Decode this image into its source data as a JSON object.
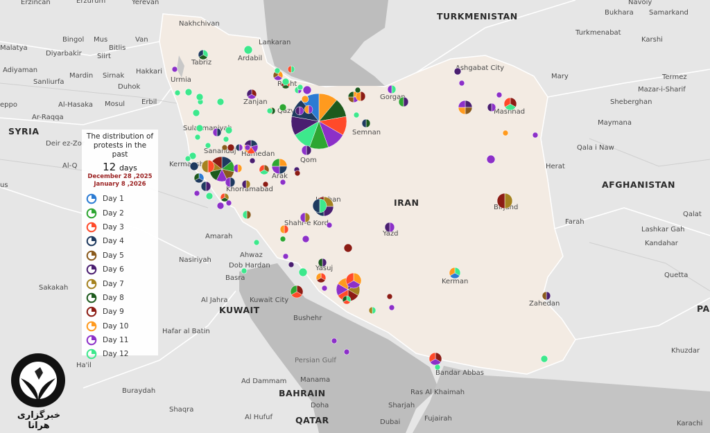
{
  "legend": {
    "title_line1": "The distribution of",
    "title_line2": "protests in the past",
    "count": "12",
    "count_unit": "days",
    "date_start": "December 28 ,2025",
    "date_end": "January  8 ,2026",
    "days": [
      {
        "label": "Day 1",
        "color": "#2b7bd3"
      },
      {
        "label": "Day 2",
        "color": "#2ea632"
      },
      {
        "label": "Day 3",
        "color": "#ff4a2a"
      },
      {
        "label": "Day 4",
        "color": "#1f3a5f"
      },
      {
        "label": "Day 5",
        "color": "#8a5a1c"
      },
      {
        "label": "Day 6",
        "color": "#4a1e70"
      },
      {
        "label": "Day 7",
        "color": "#a58220"
      },
      {
        "label": "Day 8",
        "color": "#1d5a1d"
      },
      {
        "label": "Day 9",
        "color": "#8c1c14"
      },
      {
        "label": "Day 10",
        "color": "#ff9a1e"
      },
      {
        "label": "Day 11",
        "color": "#8c30c8"
      },
      {
        "label": "Day 12",
        "color": "#3de88c"
      }
    ]
  },
  "logo": {
    "ring_text": "HUMAN RIGHTS ACTIVISTS IN IRAN",
    "caption": "خبرگزاری هرانا"
  },
  "map": {
    "countries": [
      "TURKMENISTAN",
      "SYRIA",
      "AFGHANISTAN",
      "IRAN",
      "KUWAIT",
      "BAHRAIN",
      "QATAR",
      "PA"
    ],
    "seas": [
      "Persian Gulf"
    ],
    "places": [
      "Yerevan",
      "Nakhchivan",
      "Erzincan",
      "Erzurum",
      "Bingol",
      "Mus",
      "Bitlis",
      "Van",
      "Siirt",
      "Diyarbakir",
      "Malatya",
      "Adiyaman",
      "Sanliurfa",
      "Mardin",
      "Sirnak",
      "Duhok",
      "Hakkari",
      "Urmia",
      "Tabriz",
      "Ardabil",
      "Lankaran",
      "eppo",
      "Al-Hasaka",
      "Ar-Raqqa",
      "Mosul",
      "Erbil",
      "Deir ez-Zor",
      "Sulaymaniyah",
      "Sanandaj",
      "Kermanshah",
      "Hamedan",
      "Al-Q",
      "us",
      "Khorramabad",
      "Arak",
      "Qom",
      "Rasht",
      "Zanjan",
      "Qazvin",
      "Semnan",
      "Gorgan",
      "Ashgabat City",
      "Turkmenabat",
      "Bukhara",
      "Samarkand",
      "Navoiy",
      "Karshi",
      "Mary",
      "Termez",
      "Mazar-i-Sharif",
      "Sheberghan",
      "Maymana",
      "Mashhad",
      "Qala i Naw",
      "Herat",
      "Farah",
      "Lashkar Gah",
      "Kandahar",
      "Qalat",
      "Birjand",
      "Yazd",
      "Shahr-e Kord",
      "Isfahan",
      "Amarah",
      "Ahwaz",
      "Dob Hardan",
      "Nasiriyah",
      "Basra",
      "Yasuj",
      "Kerman",
      "Zahedan",
      "Quetta",
      "Al Jahra",
      "Kuwait City",
      "Bushehr",
      "Sakakah",
      "Hafar al Batin",
      "Bandar Abbas",
      "Ras Al Khaimah",
      "Ad Dammam",
      "Manama",
      "Doha",
      "Sharjah",
      "Dubai",
      "Fujairah",
      "Al Hufuf",
      "Buraydah",
      "Ha'il",
      "Shaqra",
      "Khuzdar",
      "Karachi"
    ]
  }
}
